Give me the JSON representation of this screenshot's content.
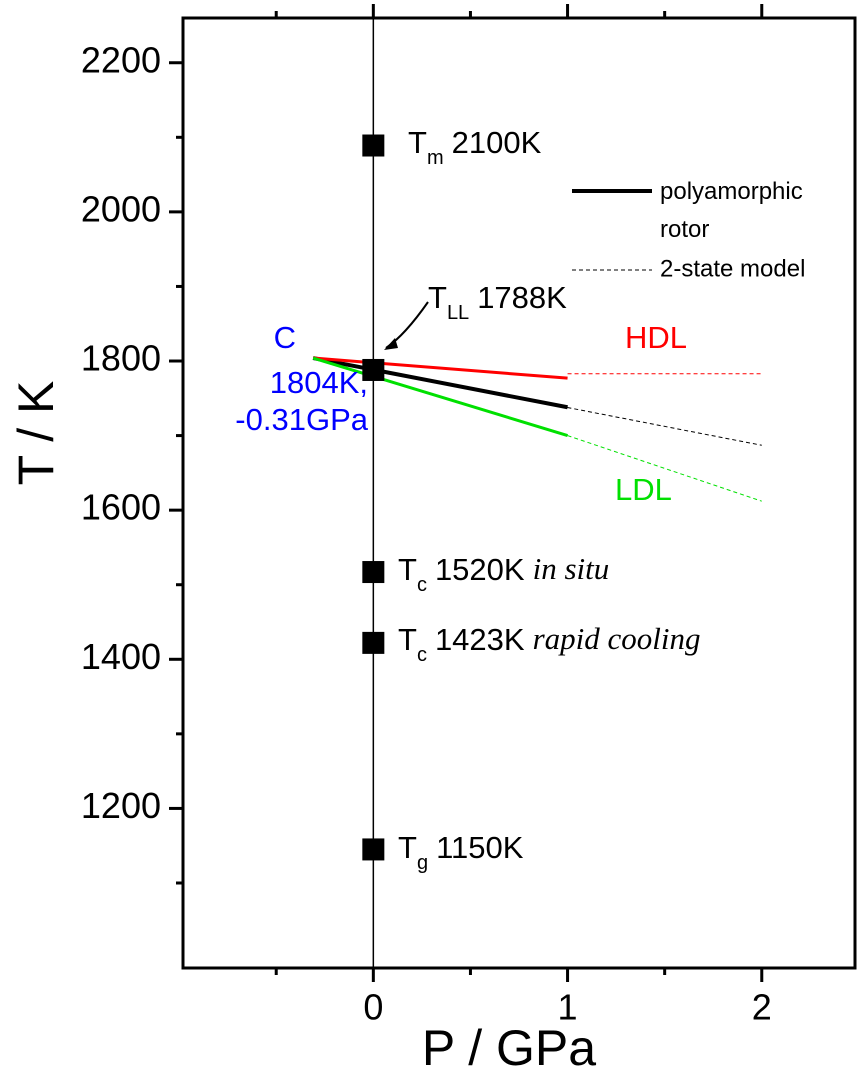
{
  "chart_data": {
    "type": "line",
    "xlabel": "P / GPa",
    "ylabel": "T / K",
    "xlim": [
      -0.98,
      2.48
    ],
    "ylim": [
      986,
      2260
    ],
    "xticks": [
      0,
      1,
      2
    ],
    "xminor": [
      -0.5,
      0.5,
      1.5
    ],
    "yticks": [
      1200,
      1400,
      1600,
      1800,
      2000,
      2200
    ],
    "yminor": [
      1100,
      1300,
      1500,
      1700,
      1900,
      2100
    ],
    "points": {
      "color": "#000000",
      "x": [
        0,
        0,
        0,
        0,
        0
      ],
      "values": [
        2089,
        1788,
        1517,
        1422,
        1145
      ]
    },
    "series": [
      {
        "name": "polyamorphic rotor",
        "color": "#000000",
        "style": "solid",
        "width": 4,
        "x": [
          -0.31,
          1
        ],
        "values": [
          1804,
          1738
        ]
      },
      {
        "name": "2-state model",
        "color": "#000000",
        "style": "dashed",
        "width": 1,
        "x": [
          -0.31,
          2
        ],
        "values": [
          1804,
          1687
        ]
      },
      {
        "color": "#ff0000",
        "style": "solid",
        "width": 3,
        "x": [
          -0.31,
          1
        ],
        "values": [
          1804,
          1777
        ]
      },
      {
        "color": "#ff0000",
        "style": "dashed",
        "width": 1,
        "x": [
          1,
          2
        ],
        "values": [
          1783,
          1783
        ]
      },
      {
        "color": "#00e000",
        "style": "solid",
        "width": 3,
        "x": [
          -0.31,
          1
        ],
        "values": [
          1804,
          1700
        ]
      },
      {
        "color": "#00e000",
        "style": "dashed",
        "width": 1,
        "x": [
          1,
          2
        ],
        "values": [
          1700,
          1612
        ]
      }
    ],
    "labels": [
      {
        "text": "T",
        "sub": "m",
        "value": "2100K"
      },
      {
        "text": "T",
        "sub": "LL",
        "value": "1788K"
      },
      {
        "text": "T",
        "sub": "c",
        "value": "1520K",
        "note": "in situ"
      },
      {
        "text": "T",
        "sub": "c",
        "value": "1423K",
        "note": "rapid cooling"
      },
      {
        "text": "T",
        "sub": "g",
        "value": "1150K"
      }
    ],
    "critical_point": {
      "color": "#0000ff",
      "lines": [
        "C",
        "1804K,",
        "-0.31GPa"
      ]
    },
    "phase_labels": [
      {
        "text": "HDL",
        "color": "#ff0000"
      },
      {
        "text": "LDL",
        "color": "#00e000"
      }
    ]
  }
}
